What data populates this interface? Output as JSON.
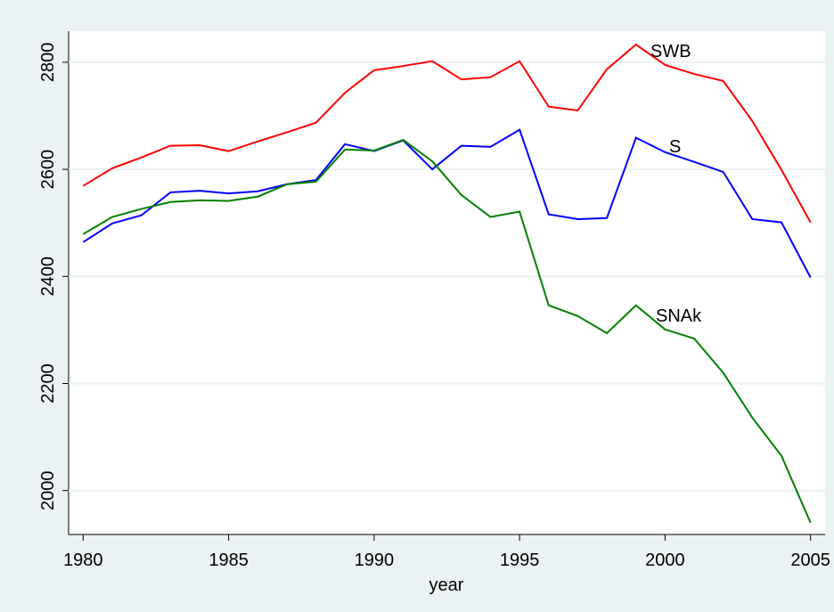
{
  "chart_data": {
    "type": "line",
    "x_label": "year",
    "x": [
      1980,
      1981,
      1982,
      1983,
      1984,
      1985,
      1986,
      1987,
      1988,
      1989,
      1990,
      1991,
      1992,
      1993,
      1994,
      1995,
      1996,
      1997,
      1998,
      1999,
      2000,
      2001,
      2002,
      2003,
      2004,
      2005
    ],
    "series": [
      {
        "name": "SWB",
        "color": "#ff0000",
        "values": [
          2569,
          2602,
          2622,
          2644,
          2645,
          2634,
          2652,
          2669,
          2687,
          2743,
          2785,
          2793,
          2802,
          2768,
          2772,
          2802,
          2717,
          2710,
          2787,
          2833,
          2795,
          2778,
          2765,
          2690,
          2599,
          2501
        ]
      },
      {
        "name": "S",
        "color": "#0000ff",
        "values": [
          2464,
          2499,
          2514,
          2557,
          2560,
          2555,
          2559,
          2572,
          2580,
          2647,
          2634,
          2654,
          2600,
          2644,
          2642,
          2674,
          2516,
          2507,
          2509,
          2659,
          2632,
          2614,
          2595,
          2507,
          2501,
          2398
        ]
      },
      {
        "name": "SNAk",
        "color": "#008000",
        "values": [
          2479,
          2511,
          2526,
          2539,
          2542,
          2541,
          2549,
          2572,
          2577,
          2637,
          2635,
          2655,
          2615,
          2552,
          2511,
          2521,
          2346,
          2326,
          2294,
          2346,
          2301,
          2284,
          2220,
          2136,
          2065,
          1940
        ]
      }
    ],
    "xlim": [
      1979.5,
      2005.5
    ],
    "ylim": [
      1918,
      2858
    ],
    "xticks": [
      1980,
      1985,
      1990,
      1995,
      2000,
      2005
    ],
    "yticks": [
      2000,
      2200,
      2400,
      2600,
      2800
    ],
    "grid": true
  }
}
